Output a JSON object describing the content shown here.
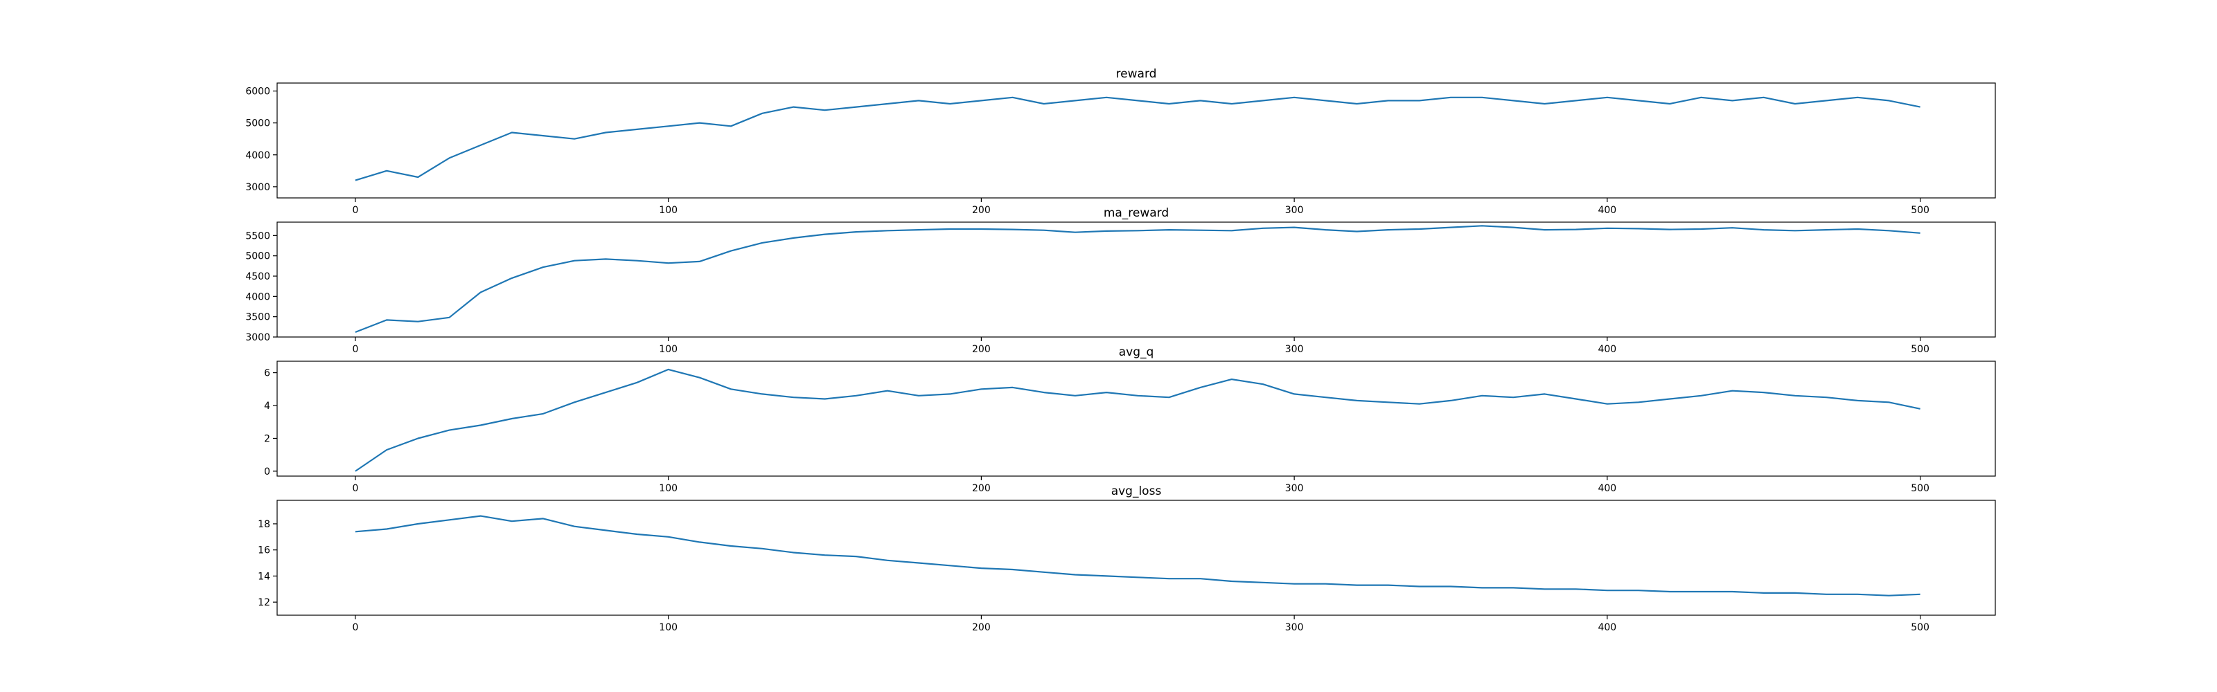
{
  "chart_data": [
    {
      "type": "line",
      "title": "reward",
      "xlabel": "",
      "ylabel": "",
      "xlim": [
        -25,
        524
      ],
      "ylim": [
        2650,
        6250
      ],
      "xticks": [
        0,
        100,
        200,
        300,
        400,
        500
      ],
      "yticks": [
        3000,
        4000,
        5000,
        6000
      ],
      "grid": false,
      "series": [
        {
          "x_start": 0,
          "x_step": 10,
          "values": [
            3200,
            3500,
            3300,
            3900,
            4300,
            4700,
            4600,
            4500,
            4700,
            4800,
            4900,
            5000,
            4900,
            5300,
            5500,
            5400,
            5500,
            5600,
            5700,
            5600,
            5700,
            5800,
            5600,
            5700,
            5800,
            5700,
            5600,
            5700,
            5600,
            5700,
            5800,
            5700,
            5600,
            5700,
            5700,
            5800,
            5800,
            5700,
            5600,
            5700,
            5800,
            5700,
            5600,
            5800,
            5700,
            5800,
            5600,
            5700,
            5800,
            5700,
            5500
          ]
        }
      ]
    },
    {
      "type": "line",
      "title": "ma_reward",
      "xlabel": "",
      "ylabel": "",
      "xlim": [
        -25,
        524
      ],
      "ylim": [
        3000,
        5830
      ],
      "xticks": [
        0,
        100,
        200,
        300,
        400,
        500
      ],
      "yticks": [
        3000,
        3500,
        4000,
        4500,
        5000,
        5500
      ],
      "grid": false,
      "series": [
        {
          "x_start": 0,
          "x_step": 10,
          "values": [
            3120,
            3420,
            3380,
            3480,
            4100,
            4450,
            4720,
            4880,
            4920,
            4880,
            4820,
            4860,
            5120,
            5320,
            5440,
            5530,
            5590,
            5620,
            5640,
            5660,
            5660,
            5650,
            5630,
            5580,
            5610,
            5620,
            5640,
            5630,
            5620,
            5680,
            5700,
            5640,
            5600,
            5640,
            5660,
            5700,
            5740,
            5700,
            5640,
            5650,
            5680,
            5670,
            5650,
            5660,
            5690,
            5640,
            5620,
            5640,
            5660,
            5620,
            5560
          ]
        }
      ]
    },
    {
      "type": "line",
      "title": "avg_q",
      "xlabel": "",
      "ylabel": "",
      "xlim": [
        -25,
        524
      ],
      "ylim": [
        -0.3,
        6.7
      ],
      "xticks": [
        0,
        100,
        200,
        300,
        400,
        500
      ],
      "yticks": [
        0,
        2,
        4,
        6
      ],
      "grid": false,
      "series": [
        {
          "x_start": 0,
          "x_step": 10,
          "values": [
            0.0,
            1.3,
            2.0,
            2.5,
            2.8,
            3.2,
            3.5,
            4.2,
            4.8,
            5.4,
            6.2,
            5.7,
            5.0,
            4.7,
            4.5,
            4.4,
            4.6,
            4.9,
            4.6,
            4.7,
            5.0,
            5.1,
            4.8,
            4.6,
            4.8,
            4.6,
            4.5,
            5.1,
            5.6,
            5.3,
            4.7,
            4.5,
            4.3,
            4.2,
            4.1,
            4.3,
            4.6,
            4.5,
            4.7,
            4.4,
            4.1,
            4.2,
            4.4,
            4.6,
            4.9,
            4.8,
            4.6,
            4.5,
            4.3,
            4.2,
            3.8
          ]
        }
      ]
    },
    {
      "type": "line",
      "title": "avg_loss",
      "xlabel": "",
      "ylabel": "",
      "xlim": [
        -25,
        524
      ],
      "ylim": [
        11.0,
        19.8
      ],
      "xticks": [
        0,
        100,
        200,
        300,
        400,
        500
      ],
      "yticks": [
        12,
        14,
        16,
        18
      ],
      "grid": false,
      "series": [
        {
          "x_start": 0,
          "x_step": 10,
          "values": [
            17.4,
            17.6,
            18.0,
            18.3,
            18.6,
            18.2,
            18.4,
            17.8,
            17.5,
            17.2,
            17.0,
            16.6,
            16.3,
            16.1,
            15.8,
            15.6,
            15.5,
            15.2,
            15.0,
            14.8,
            14.6,
            14.5,
            14.3,
            14.1,
            14.0,
            13.9,
            13.8,
            13.8,
            13.6,
            13.5,
            13.4,
            13.4,
            13.3,
            13.3,
            13.2,
            13.2,
            13.1,
            13.1,
            13.0,
            13.0,
            12.9,
            12.9,
            12.8,
            12.8,
            12.8,
            12.7,
            12.7,
            12.6,
            12.6,
            12.5,
            12.6
          ]
        }
      ]
    }
  ]
}
